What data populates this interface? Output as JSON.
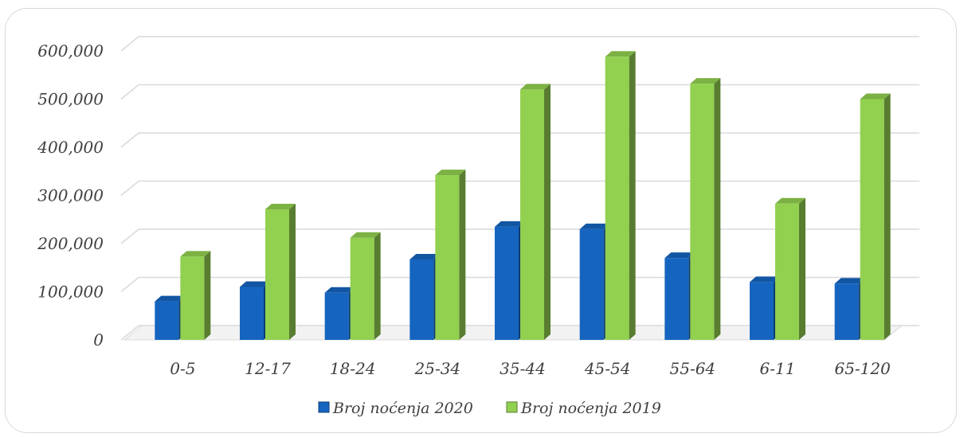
{
  "chart_data": {
    "type": "bar",
    "categories": [
      "0-5",
      "12-17",
      "18-24",
      "25-34",
      "35-44",
      "45-54",
      "55-64",
      "6-11",
      "65-120"
    ],
    "series": [
      {
        "name": "Broj noćenja 2020",
        "values": [
          80000,
          110000,
          98000,
          167000,
          235000,
          230000,
          170000,
          120000,
          117000
        ],
        "color": "#1565c0"
      },
      {
        "name": "Broj noćenja 2019",
        "values": [
          173000,
          271000,
          212000,
          342000,
          520000,
          588000,
          532000,
          283000,
          500000
        ],
        "color": "#92d050"
      }
    ],
    "y_ticks": [
      "0",
      "100,000",
      "200,000",
      "300,000",
      "400,000",
      "500,000",
      "600,000"
    ],
    "ylim": [
      0,
      600000
    ],
    "grid": true,
    "legend_position": "bottom"
  }
}
